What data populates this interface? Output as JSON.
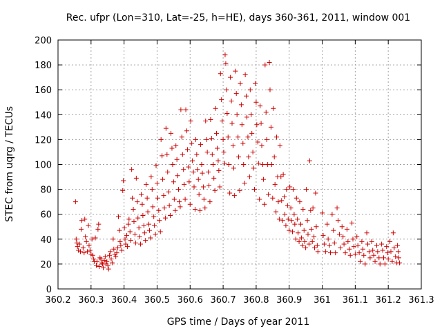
{
  "chart_data": {
    "type": "scatter",
    "title": "Rec. ufpr (Lon=310, Lat=-25, h=HE), days 360-361, 2011, window 001",
    "xlabel": "GPS time / Days of year 2011",
    "ylabel": "STEC from uqrg / TECUs",
    "xlim": [
      360.2,
      361.3
    ],
    "ylim": [
      0,
      200
    ],
    "x_ticks": [
      360.2,
      360.3,
      360.4,
      360.5,
      360.6,
      360.7,
      360.8,
      360.9,
      361,
      361.1,
      361.2,
      361.3
    ],
    "x_tick_labels": [
      "360.2",
      "360.3",
      "360.4",
      "360.5",
      "360.6",
      "360.7",
      "360.8",
      "360.9",
      "361",
      "361.1",
      "361.2",
      "361.3"
    ],
    "y_ticks": [
      0,
      20,
      40,
      60,
      80,
      100,
      120,
      140,
      160,
      180,
      200
    ],
    "y_tick_labels": [
      "0",
      "20",
      "40",
      "60",
      "80",
      "100",
      "120",
      "140",
      "160",
      "180",
      "200"
    ],
    "grid": true,
    "marker": "+",
    "color": "#cc0000",
    "points": [
      [
        360.253,
        70
      ],
      [
        360.255,
        40
      ],
      [
        360.257,
        37
      ],
      [
        360.259,
        34
      ],
      [
        360.262,
        31
      ],
      [
        360.265,
        36
      ],
      [
        360.268,
        30
      ],
      [
        360.27,
        48
      ],
      [
        360.272,
        55
      ],
      [
        360.276,
        33
      ],
      [
        360.279,
        29
      ],
      [
        360.281,
        56
      ],
      [
        360.283,
        42
      ],
      [
        360.286,
        38
      ],
      [
        360.289,
        30
      ],
      [
        360.292,
        51
      ],
      [
        360.294,
        35
      ],
      [
        360.297,
        31
      ],
      [
        360.3,
        28
      ],
      [
        360.303,
        40
      ],
      [
        360.305,
        27
      ],
      [
        360.308,
        24
      ],
      [
        360.31,
        22
      ],
      [
        360.313,
        41
      ],
      [
        360.316,
        19
      ],
      [
        360.318,
        22
      ],
      [
        360.321,
        48
      ],
      [
        360.323,
        52
      ],
      [
        360.325,
        18
      ],
      [
        360.327,
        25
      ],
      [
        360.33,
        24
      ],
      [
        360.333,
        21
      ],
      [
        360.335,
        20
      ],
      [
        360.337,
        17
      ],
      [
        360.34,
        23
      ],
      [
        360.343,
        26
      ],
      [
        360.345,
        20
      ],
      [
        360.348,
        22
      ],
      [
        360.351,
        19
      ],
      [
        360.353,
        16
      ],
      [
        360.356,
        27
      ],
      [
        360.358,
        30
      ],
      [
        360.361,
        24
      ],
      [
        360.364,
        21
      ],
      [
        360.367,
        40
      ],
      [
        360.369,
        32
      ],
      [
        360.372,
        28
      ],
      [
        360.375,
        26
      ],
      [
        360.378,
        29
      ],
      [
        360.381,
        33
      ],
      [
        360.383,
        58
      ],
      [
        360.386,
        47
      ],
      [
        360.388,
        38
      ],
      [
        360.39,
        35
      ],
      [
        360.393,
        31
      ],
      [
        360.396,
        79
      ],
      [
        360.398,
        87
      ],
      [
        360.401,
        49
      ],
      [
        360.403,
        40
      ],
      [
        360.405,
        36
      ],
      [
        360.408,
        43
      ],
      [
        360.41,
        34
      ],
      [
        360.413,
        52
      ],
      [
        360.415,
        56
      ],
      [
        360.418,
        46
      ],
      [
        360.42,
        39
      ],
      [
        360.423,
        96
      ],
      [
        360.425,
        73
      ],
      [
        360.428,
        64
      ],
      [
        360.43,
        54
      ],
      [
        360.433,
        44
      ],
      [
        360.435,
        37
      ],
      [
        360.437,
        89
      ],
      [
        360.44,
        70
      ],
      [
        360.442,
        57
      ],
      [
        360.445,
        49
      ],
      [
        360.447,
        42
      ],
      [
        360.45,
        36
      ],
      [
        360.452,
        76
      ],
      [
        360.455,
        68
      ],
      [
        360.457,
        59
      ],
      [
        360.46,
        51
      ],
      [
        360.462,
        45
      ],
      [
        360.465,
        39
      ],
      [
        360.467,
        84
      ],
      [
        360.47,
        73
      ],
      [
        360.472,
        62
      ],
      [
        360.475,
        52
      ],
      [
        360.477,
        47
      ],
      [
        360.48,
        41
      ],
      [
        360.482,
        90
      ],
      [
        360.485,
        80
      ],
      [
        360.487,
        66
      ],
      [
        360.49,
        58
      ],
      [
        360.492,
        51
      ],
      [
        360.495,
        44
      ],
      [
        360.497,
        99
      ],
      [
        360.5,
        85
      ],
      [
        360.502,
        73
      ],
      [
        360.505,
        63
      ],
      [
        360.507,
        55
      ],
      [
        360.51,
        46
      ],
      [
        360.512,
        120
      ],
      [
        360.515,
        107
      ],
      [
        360.517,
        88
      ],
      [
        360.52,
        75
      ],
      [
        360.522,
        65
      ],
      [
        360.525,
        57
      ],
      [
        360.527,
        129
      ],
      [
        360.53,
        108
      ],
      [
        360.532,
        94
      ],
      [
        360.535,
        78
      ],
      [
        360.537,
        67
      ],
      [
        360.54,
        59
      ],
      [
        360.542,
        125
      ],
      [
        360.545,
        113
      ],
      [
        360.547,
        100
      ],
      [
        360.55,
        86
      ],
      [
        360.552,
        72
      ],
      [
        360.555,
        63
      ],
      [
        360.557,
        115
      ],
      [
        360.56,
        104
      ],
      [
        360.562,
        91
      ],
      [
        360.565,
        80
      ],
      [
        360.567,
        70
      ],
      [
        360.57,
        66
      ],
      [
        360.572,
        144
      ],
      [
        360.575,
        122
      ],
      [
        360.577,
        108
      ],
      [
        360.58,
        96
      ],
      [
        360.582,
        84
      ],
      [
        360.585,
        72
      ],
      [
        360.587,
        144
      ],
      [
        360.59,
        127
      ],
      [
        360.592,
        112
      ],
      [
        360.595,
        98
      ],
      [
        360.597,
        86
      ],
      [
        360.6,
        68
      ],
      [
        360.602,
        135
      ],
      [
        360.605,
        117
      ],
      [
        360.607,
        103
      ],
      [
        360.61,
        94
      ],
      [
        360.612,
        82
      ],
      [
        360.615,
        64
      ],
      [
        360.617,
        120
      ],
      [
        360.62,
        108
      ],
      [
        360.622,
        96
      ],
      [
        360.625,
        88
      ],
      [
        360.627,
        76
      ],
      [
        360.63,
        63
      ],
      [
        360.632,
        116
      ],
      [
        360.635,
        100
      ],
      [
        360.637,
        93
      ],
      [
        360.64,
        82
      ],
      [
        360.642,
        72
      ],
      [
        360.645,
        65
      ],
      [
        360.647,
        135
      ],
      [
        360.65,
        120
      ],
      [
        360.652,
        110
      ],
      [
        360.655,
        94
      ],
      [
        360.657,
        83
      ],
      [
        360.66,
        70
      ],
      [
        360.662,
        136
      ],
      [
        360.665,
        121
      ],
      [
        360.667,
        108
      ],
      [
        360.67,
        100
      ],
      [
        360.672,
        89
      ],
      [
        360.675,
        79
      ],
      [
        360.677,
        145
      ],
      [
        360.68,
        125
      ],
      [
        360.682,
        113
      ],
      [
        360.685,
        103
      ],
      [
        360.687,
        95
      ],
      [
        360.69,
        82
      ],
      [
        360.692,
        173
      ],
      [
        360.695,
        152
      ],
      [
        360.697,
        135
      ],
      [
        360.7,
        120
      ],
      [
        360.702,
        110
      ],
      [
        360.705,
        101
      ],
      [
        360.706,
        188
      ],
      [
        360.708,
        181
      ],
      [
        360.71,
        160
      ],
      [
        360.712,
        141
      ],
      [
        360.715,
        122
      ],
      [
        360.717,
        100
      ],
      [
        360.72,
        77
      ],
      [
        360.722,
        170
      ],
      [
        360.725,
        151
      ],
      [
        360.727,
        133
      ],
      [
        360.73,
        115
      ],
      [
        360.732,
        97
      ],
      [
        360.734,
        75
      ],
      [
        360.737,
        175
      ],
      [
        360.74,
        157
      ],
      [
        360.742,
        140
      ],
      [
        360.745,
        122
      ],
      [
        360.747,
        106
      ],
      [
        360.75,
        79
      ],
      [
        360.752,
        165
      ],
      [
        360.755,
        148
      ],
      [
        360.757,
        132
      ],
      [
        360.76,
        117
      ],
      [
        360.762,
        100
      ],
      [
        360.765,
        85
      ],
      [
        360.767,
        172
      ],
      [
        360.77,
        155
      ],
      [
        360.772,
        138
      ],
      [
        360.775,
        122
      ],
      [
        360.777,
        106
      ],
      [
        360.78,
        90
      ],
      [
        360.782,
        160
      ],
      [
        360.785,
        140
      ],
      [
        360.787,
        125
      ],
      [
        360.79,
        110
      ],
      [
        360.792,
        97
      ],
      [
        360.795,
        80
      ],
      [
        360.797,
        165
      ],
      [
        360.8,
        150
      ],
      [
        360.802,
        132
      ],
      [
        360.805,
        118
      ],
      [
        360.807,
        101
      ],
      [
        360.81,
        72
      ],
      [
        360.812,
        147
      ],
      [
        360.815,
        133
      ],
      [
        360.817,
        115
      ],
      [
        360.82,
        100
      ],
      [
        360.822,
        88
      ],
      [
        360.825,
        68
      ],
      [
        360.827,
        180
      ],
      [
        360.83,
        142
      ],
      [
        360.832,
        120
      ],
      [
        360.835,
        100
      ],
      [
        360.837,
        76
      ],
      [
        360.84,
        182
      ],
      [
        360.842,
        160
      ],
      [
        360.845,
        130
      ],
      [
        360.847,
        100
      ],
      [
        360.85,
        73
      ],
      [
        360.852,
        145
      ],
      [
        360.855,
        106
      ],
      [
        360.857,
        84
      ],
      [
        360.86,
        62
      ],
      [
        360.862,
        122
      ],
      [
        360.865,
        90
      ],
      [
        360.867,
        70
      ],
      [
        360.87,
        56
      ],
      [
        360.872,
        115
      ],
      [
        360.875,
        90
      ],
      [
        360.877,
        71
      ],
      [
        360.88,
        55
      ],
      [
        360.882,
        92
      ],
      [
        360.885,
        74
      ],
      [
        360.887,
        60
      ],
      [
        360.89,
        51
      ],
      [
        360.892,
        80
      ],
      [
        360.895,
        67
      ],
      [
        360.897,
        56
      ],
      [
        360.9,
        47
      ],
      [
        360.902,
        82
      ],
      [
        360.905,
        65
      ],
      [
        360.907,
        55
      ],
      [
        360.91,
        46
      ],
      [
        360.912,
        80
      ],
      [
        360.915,
        60
      ],
      [
        360.917,
        52
      ],
      [
        360.92,
        40
      ],
      [
        360.922,
        73
      ],
      [
        360.925,
        56
      ],
      [
        360.927,
        45
      ],
      [
        360.93,
        38
      ],
      [
        360.932,
        70
      ],
      [
        360.935,
        52
      ],
      [
        360.937,
        41
      ],
      [
        360.94,
        35
      ],
      [
        360.942,
        64
      ],
      [
        360.945,
        47
      ],
      [
        360.947,
        38
      ],
      [
        360.95,
        33
      ],
      [
        360.952,
        80
      ],
      [
        360.955,
        55
      ],
      [
        360.957,
        44
      ],
      [
        360.96,
        36
      ],
      [
        360.962,
        103
      ],
      [
        360.965,
        63
      ],
      [
        360.967,
        48
      ],
      [
        360.97,
        38
      ],
      [
        360.972,
        65
      ],
      [
        360.975,
        42
      ],
      [
        360.977,
        33
      ],
      [
        360.98,
        77
      ],
      [
        360.982,
        50
      ],
      [
        360.985,
        35
      ],
      [
        360.987,
        30
      ],
      [
        361.0,
        61
      ],
      [
        361.003,
        43
      ],
      [
        361.006,
        36
      ],
      [
        361.01,
        30
      ],
      [
        361.015,
        52
      ],
      [
        361.018,
        40
      ],
      [
        361.022,
        35
      ],
      [
        361.025,
        29
      ],
      [
        361.03,
        60
      ],
      [
        361.034,
        47
      ],
      [
        361.037,
        37
      ],
      [
        361.04,
        29
      ],
      [
        361.045,
        65
      ],
      [
        361.048,
        55
      ],
      [
        361.052,
        44
      ],
      [
        361.055,
        33
      ],
      [
        361.06,
        50
      ],
      [
        361.063,
        42
      ],
      [
        361.066,
        36
      ],
      [
        361.07,
        29
      ],
      [
        361.075,
        48
      ],
      [
        361.078,
        38
      ],
      [
        361.082,
        32
      ],
      [
        361.085,
        27
      ],
      [
        361.09,
        53
      ],
      [
        361.093,
        40
      ],
      [
        361.096,
        34
      ],
      [
        361.1,
        28
      ],
      [
        361.105,
        42
      ],
      [
        361.108,
        35
      ],
      [
        361.112,
        29
      ],
      [
        361.115,
        22
      ],
      [
        361.12,
        38
      ],
      [
        361.123,
        32
      ],
      [
        361.126,
        27
      ],
      [
        361.13,
        20
      ],
      [
        361.135,
        45
      ],
      [
        361.138,
        36
      ],
      [
        361.142,
        30
      ],
      [
        361.145,
        25
      ],
      [
        361.15,
        38
      ],
      [
        361.153,
        31
      ],
      [
        361.156,
        27
      ],
      [
        361.16,
        22
      ],
      [
        361.165,
        35
      ],
      [
        361.168,
        30
      ],
      [
        361.172,
        25
      ],
      [
        361.175,
        20
      ],
      [
        361.18,
        36
      ],
      [
        361.183,
        31
      ],
      [
        361.186,
        25
      ],
      [
        361.19,
        20
      ],
      [
        361.195,
        34
      ],
      [
        361.198,
        29
      ],
      [
        361.2,
        24
      ],
      [
        361.205,
        38
      ],
      [
        361.208,
        30
      ],
      [
        361.212,
        22
      ],
      [
        361.215,
        45
      ],
      [
        361.218,
        33
      ],
      [
        361.222,
        26
      ],
      [
        361.225,
        21
      ],
      [
        361.228,
        35
      ],
      [
        361.23,
        30
      ],
      [
        361.232,
        25
      ],
      [
        361.234,
        21
      ]
    ]
  }
}
